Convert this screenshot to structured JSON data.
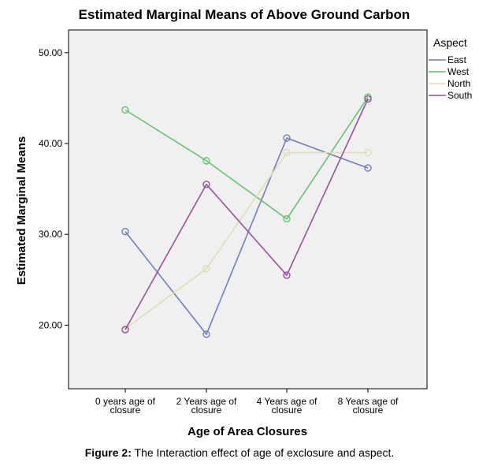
{
  "chart_data": {
    "type": "line",
    "title": "Estimated Marginal Means of Above Ground Carbon",
    "xlabel": "Age of Area Closures",
    "ylabel": "Estimated Marginal Means",
    "categories": [
      [
        "0 years age of",
        "closure"
      ],
      [
        "2 Years age of",
        "closure"
      ],
      [
        "4 Years age of",
        "closure"
      ],
      [
        "8 Years age of",
        "closure"
      ]
    ],
    "ylim": [
      13,
      52.5
    ],
    "yticks": [
      20,
      30,
      40,
      50
    ],
    "ytick_labels": [
      "20.00",
      "30.00",
      "40.00",
      "50.00"
    ],
    "grid": false,
    "legend_title": "Aspect",
    "legend_position": "right",
    "series": [
      {
        "name": "East",
        "color": "#6f7fbf",
        "values": [
          30.3,
          19.0,
          40.6,
          37.3
        ]
      },
      {
        "name": "West",
        "color": "#5fc76a",
        "values": [
          43.7,
          38.1,
          31.7,
          45.1
        ]
      },
      {
        "name": "North",
        "color": "#e2dcb3",
        "values": [
          19.6,
          26.2,
          39.0,
          39.0
        ]
      },
      {
        "name": "South",
        "color": "#9b4fa0",
        "values": [
          19.5,
          35.5,
          25.5,
          44.9
        ]
      }
    ]
  },
  "caption": {
    "label": "Figure 2:",
    "text": " The Interaction effect of age of exclosure and aspect."
  }
}
